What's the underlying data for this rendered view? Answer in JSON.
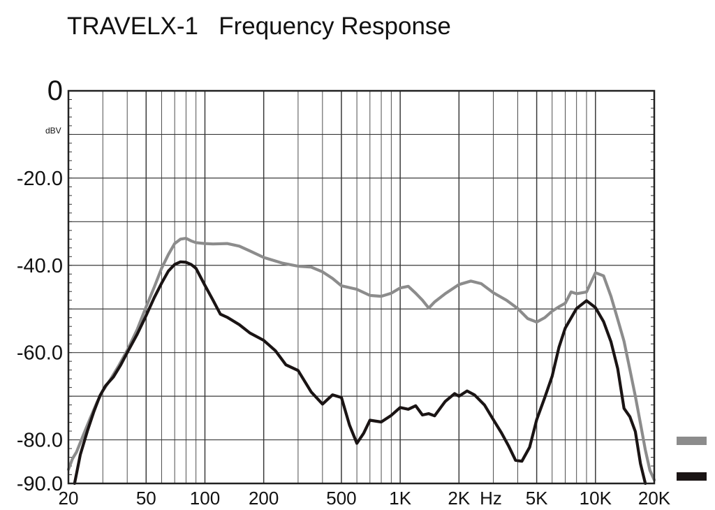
{
  "chart_data": {
    "type": "line",
    "title": "TRAVELX-1   Frequency Response",
    "x_scale": "log",
    "x_unit": "Hz",
    "y_unit": "dBV",
    "xlim": [
      20,
      20000
    ],
    "ylim": [
      -90,
      0
    ],
    "grid": true,
    "legend_position": "right, bottom",
    "x_ticks": [
      {
        "value": 20,
        "label": "20"
      },
      {
        "value": 50,
        "label": "50"
      },
      {
        "value": 100,
        "label": "100"
      },
      {
        "value": 200,
        "label": "200"
      },
      {
        "value": 500,
        "label": "500"
      },
      {
        "value": 1000,
        "label": "1K"
      },
      {
        "value": 2000,
        "label": "2K"
      },
      {
        "value": 5000,
        "label": "5K"
      },
      {
        "value": 10000,
        "label": "10K"
      },
      {
        "value": 20000,
        "label": "20K"
      }
    ],
    "y_ticks": [
      {
        "value": 0,
        "label": "0"
      },
      {
        "value": -20,
        "label": "-20.0"
      },
      {
        "value": -40,
        "label": "-40.0"
      },
      {
        "value": -60,
        "label": "-60.0"
      },
      {
        "value": -80,
        "label": "-80.0"
      },
      {
        "value": -90,
        "label": "-90.0"
      }
    ],
    "series": [
      {
        "color": "#8c8c8c",
        "points": [
          [
            20,
            -86.8
          ],
          [
            21,
            -84.3
          ],
          [
            22,
            -82.8
          ],
          [
            24,
            -78.6
          ],
          [
            26,
            -74.8
          ],
          [
            28,
            -71.4
          ],
          [
            30,
            -68.8
          ],
          [
            33,
            -66.0
          ],
          [
            36,
            -63.2
          ],
          [
            40,
            -59.5
          ],
          [
            45,
            -54.7
          ],
          [
            50,
            -49.5
          ],
          [
            55,
            -45.0
          ],
          [
            60,
            -40.7
          ],
          [
            65,
            -37.5
          ],
          [
            70,
            -35.0
          ],
          [
            75,
            -34.0
          ],
          [
            80,
            -33.8
          ],
          [
            85,
            -34.4
          ],
          [
            90,
            -34.8
          ],
          [
            100,
            -35.0
          ],
          [
            110,
            -35.1
          ],
          [
            130,
            -35.0
          ],
          [
            150,
            -35.6
          ],
          [
            170,
            -36.7
          ],
          [
            200,
            -38.2
          ],
          [
            250,
            -39.5
          ],
          [
            300,
            -40.2
          ],
          [
            350,
            -40.4
          ],
          [
            400,
            -41.5
          ],
          [
            450,
            -43.0
          ],
          [
            500,
            -44.7
          ],
          [
            600,
            -45.5
          ],
          [
            700,
            -46.9
          ],
          [
            800,
            -47.1
          ],
          [
            900,
            -46.4
          ],
          [
            1000,
            -45.2
          ],
          [
            1100,
            -44.8
          ],
          [
            1200,
            -46.4
          ],
          [
            1300,
            -48.0
          ],
          [
            1400,
            -49.8
          ],
          [
            1500,
            -48.4
          ],
          [
            1700,
            -46.5
          ],
          [
            2000,
            -44.4
          ],
          [
            2300,
            -43.6
          ],
          [
            2600,
            -44.2
          ],
          [
            3000,
            -46.3
          ],
          [
            3500,
            -48.0
          ],
          [
            4000,
            -49.9
          ],
          [
            4500,
            -52.2
          ],
          [
            5000,
            -53.0
          ],
          [
            5500,
            -52.0
          ],
          [
            6000,
            -50.5
          ],
          [
            6500,
            -49.5
          ],
          [
            7000,
            -48.7
          ],
          [
            7500,
            -46.1
          ],
          [
            8000,
            -46.5
          ],
          [
            9000,
            -46.1
          ],
          [
            10000,
            -41.7
          ],
          [
            11000,
            -42.4
          ],
          [
            12000,
            -47.1
          ],
          [
            13000,
            -52.4
          ],
          [
            14000,
            -57.4
          ],
          [
            15000,
            -63.9
          ],
          [
            16000,
            -70.0
          ],
          [
            17000,
            -76.3
          ],
          [
            18000,
            -82.3
          ],
          [
            19000,
            -87.0
          ],
          [
            20000,
            -89.2
          ]
        ]
      },
      {
        "color": "#1a1414",
        "points": [
          [
            21.5,
            -90.0
          ],
          [
            23,
            -83.4
          ],
          [
            25,
            -78.0
          ],
          [
            27,
            -73.5
          ],
          [
            29,
            -69.9
          ],
          [
            31,
            -67.6
          ],
          [
            34,
            -65.6
          ],
          [
            37,
            -62.9
          ],
          [
            40,
            -60.0
          ],
          [
            45,
            -55.8
          ],
          [
            50,
            -51.5
          ],
          [
            55,
            -47.4
          ],
          [
            60,
            -44.1
          ],
          [
            65,
            -41.3
          ],
          [
            70,
            -39.8
          ],
          [
            75,
            -39.2
          ],
          [
            80,
            -39.3
          ],
          [
            85,
            -39.8
          ],
          [
            90,
            -40.7
          ],
          [
            100,
            -44.6
          ],
          [
            110,
            -48.0
          ],
          [
            120,
            -51.2
          ],
          [
            130,
            -51.9
          ],
          [
            150,
            -53.6
          ],
          [
            170,
            -55.5
          ],
          [
            200,
            -57.2
          ],
          [
            230,
            -59.6
          ],
          [
            260,
            -62.8
          ],
          [
            300,
            -64.1
          ],
          [
            350,
            -69.0
          ],
          [
            400,
            -71.8
          ],
          [
            450,
            -69.7
          ],
          [
            500,
            -70.3
          ],
          [
            550,
            -76.6
          ],
          [
            600,
            -80.8
          ],
          [
            650,
            -78.5
          ],
          [
            700,
            -75.5
          ],
          [
            800,
            -75.9
          ],
          [
            900,
            -74.4
          ],
          [
            1000,
            -72.6
          ],
          [
            1100,
            -73.0
          ],
          [
            1200,
            -72.2
          ],
          [
            1300,
            -74.3
          ],
          [
            1400,
            -74.0
          ],
          [
            1500,
            -74.5
          ],
          [
            1700,
            -71.2
          ],
          [
            1900,
            -69.4
          ],
          [
            2000,
            -70.0
          ],
          [
            2200,
            -68.8
          ],
          [
            2400,
            -69.7
          ],
          [
            2700,
            -72.0
          ],
          [
            3000,
            -75.4
          ],
          [
            3300,
            -78.4
          ],
          [
            3600,
            -81.5
          ],
          [
            3900,
            -84.7
          ],
          [
            4200,
            -84.9
          ],
          [
            4600,
            -81.7
          ],
          [
            5000,
            -75.4
          ],
          [
            5500,
            -70.3
          ],
          [
            6000,
            -65.4
          ],
          [
            6500,
            -58.8
          ],
          [
            7000,
            -54.4
          ],
          [
            8000,
            -49.9
          ],
          [
            9000,
            -48.1
          ],
          [
            10000,
            -49.7
          ],
          [
            11000,
            -52.9
          ],
          [
            12000,
            -57.5
          ],
          [
            13000,
            -63.7
          ],
          [
            14000,
            -72.8
          ],
          [
            15000,
            -74.7
          ],
          [
            16000,
            -78.1
          ],
          [
            17000,
            -85.5
          ],
          [
            18000,
            -90.0
          ]
        ]
      }
    ]
  }
}
